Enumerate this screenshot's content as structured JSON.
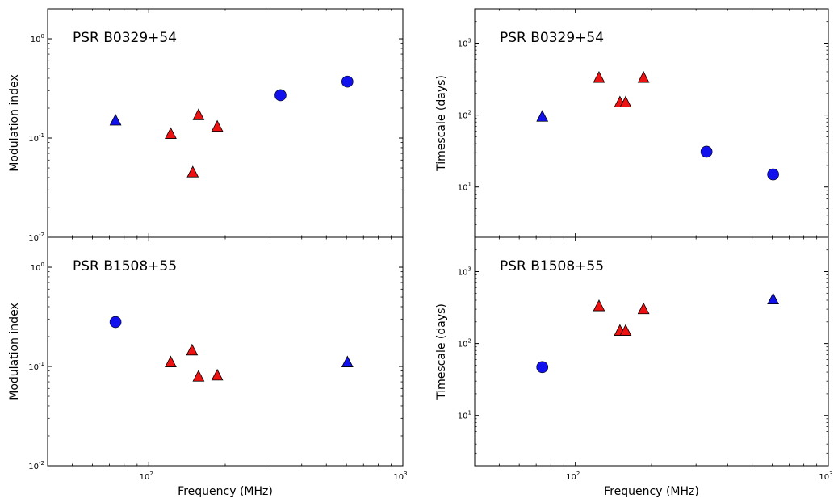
{
  "chart_data": [
    {
      "type": "scatter",
      "annotation": "PSR B0329+54",
      "xlabel": "",
      "ylabel": "Modulation index",
      "xscale": "log",
      "yscale": "log",
      "xlim": [
        40,
        1000
      ],
      "ylim": [
        0.01,
        2
      ],
      "x_ticks": [
        {
          "value": 100,
          "base": "10",
          "exp": "2"
        },
        {
          "value": 1000,
          "base": "10",
          "exp": "3"
        }
      ],
      "y_ticks": [
        {
          "value": 0.01,
          "base": "10",
          "exp": "-2"
        },
        {
          "value": 0.1,
          "base": "10",
          "exp": "-1"
        },
        {
          "value": 1,
          "base": "10",
          "exp": "0"
        }
      ],
      "show_x_tick_labels": false,
      "series": [
        {
          "marker": "triangle",
          "color": "#ee1111",
          "points": [
            {
              "x": 122,
              "y": 0.11
            },
            {
              "x": 157,
              "y": 0.17
            },
            {
              "x": 149,
              "y": 0.045
            },
            {
              "x": 186,
              "y": 0.13
            }
          ]
        },
        {
          "marker": "triangle",
          "color": "#1111ee",
          "points": [
            {
              "x": 74,
              "y": 0.15
            }
          ]
        },
        {
          "marker": "circle",
          "color": "#1111ee",
          "points": [
            {
              "x": 330,
              "y": 0.27
            },
            {
              "x": 605,
              "y": 0.37
            }
          ]
        }
      ]
    },
    {
      "type": "scatter",
      "annotation": "PSR B0329+54",
      "xlabel": "",
      "ylabel": "Timescale (days)",
      "xscale": "log",
      "yscale": "log",
      "xlim": [
        40,
        1000
      ],
      "ylim": [
        2,
        3000
      ],
      "x_ticks": [
        {
          "value": 100,
          "base": "10",
          "exp": "2"
        },
        {
          "value": 1000,
          "base": "10",
          "exp": "3"
        }
      ],
      "y_ticks": [
        {
          "value": 10,
          "base": "10",
          "exp": "1"
        },
        {
          "value": 100,
          "base": "10",
          "exp": "2"
        },
        {
          "value": 1000,
          "base": "10",
          "exp": "3"
        }
      ],
      "show_x_tick_labels": false,
      "series": [
        {
          "marker": "triangle",
          "color": "#ee1111",
          "points": [
            {
              "x": 124,
              "y": 330
            },
            {
              "x": 150,
              "y": 150
            },
            {
              "x": 158,
              "y": 150
            },
            {
              "x": 186,
              "y": 330
            }
          ]
        },
        {
          "marker": "triangle",
          "color": "#1111ee",
          "points": [
            {
              "x": 74,
              "y": 95
            }
          ]
        },
        {
          "marker": "circle",
          "color": "#1111ee",
          "points": [
            {
              "x": 330,
              "y": 31
            },
            {
              "x": 605,
              "y": 15
            }
          ]
        }
      ]
    },
    {
      "type": "scatter",
      "annotation": "PSR B1508+55",
      "xlabel": "Frequency (MHz)",
      "ylabel": "Modulation index",
      "xscale": "log",
      "yscale": "log",
      "xlim": [
        40,
        1000
      ],
      "ylim": [
        0.01,
        2
      ],
      "x_ticks": [
        {
          "value": 100,
          "base": "10",
          "exp": "2"
        },
        {
          "value": 1000,
          "base": "10",
          "exp": "3"
        }
      ],
      "y_ticks": [
        {
          "value": 0.01,
          "base": "10",
          "exp": "-2"
        },
        {
          "value": 0.1,
          "base": "10",
          "exp": "-1"
        },
        {
          "value": 1,
          "base": "10",
          "exp": "0"
        }
      ],
      "show_x_tick_labels": true,
      "series": [
        {
          "marker": "triangle",
          "color": "#ee1111",
          "points": [
            {
              "x": 122,
              "y": 0.11
            },
            {
              "x": 148,
              "y": 0.145
            },
            {
              "x": 157,
              "y": 0.079
            },
            {
              "x": 186,
              "y": 0.081
            }
          ]
        },
        {
          "marker": "triangle",
          "color": "#1111ee",
          "points": [
            {
              "x": 605,
              "y": 0.11
            }
          ]
        },
        {
          "marker": "circle",
          "color": "#1111ee",
          "points": [
            {
              "x": 74,
              "y": 0.28
            }
          ]
        }
      ]
    },
    {
      "type": "scatter",
      "annotation": "PSR B1508+55",
      "xlabel": "Frequency (MHz)",
      "ylabel": "Timescale (days)",
      "xscale": "log",
      "yscale": "log",
      "xlim": [
        40,
        1000
      ],
      "ylim": [
        2,
        3000
      ],
      "x_ticks": [
        {
          "value": 100,
          "base": "10",
          "exp": "2"
        },
        {
          "value": 1000,
          "base": "10",
          "exp": "3"
        }
      ],
      "y_ticks": [
        {
          "value": 10,
          "base": "10",
          "exp": "1"
        },
        {
          "value": 100,
          "base": "10",
          "exp": "2"
        },
        {
          "value": 1000,
          "base": "10",
          "exp": "3"
        }
      ],
      "show_x_tick_labels": true,
      "series": [
        {
          "marker": "triangle",
          "color": "#ee1111",
          "points": [
            {
              "x": 124,
              "y": 330
            },
            {
              "x": 150,
              "y": 150
            },
            {
              "x": 158,
              "y": 150
            },
            {
              "x": 186,
              "y": 300
            }
          ]
        },
        {
          "marker": "triangle",
          "color": "#1111ee",
          "points": [
            {
              "x": 605,
              "y": 410
            }
          ]
        },
        {
          "marker": "circle",
          "color": "#1111ee",
          "points": [
            {
              "x": 74,
              "y": 47
            }
          ]
        }
      ]
    }
  ]
}
